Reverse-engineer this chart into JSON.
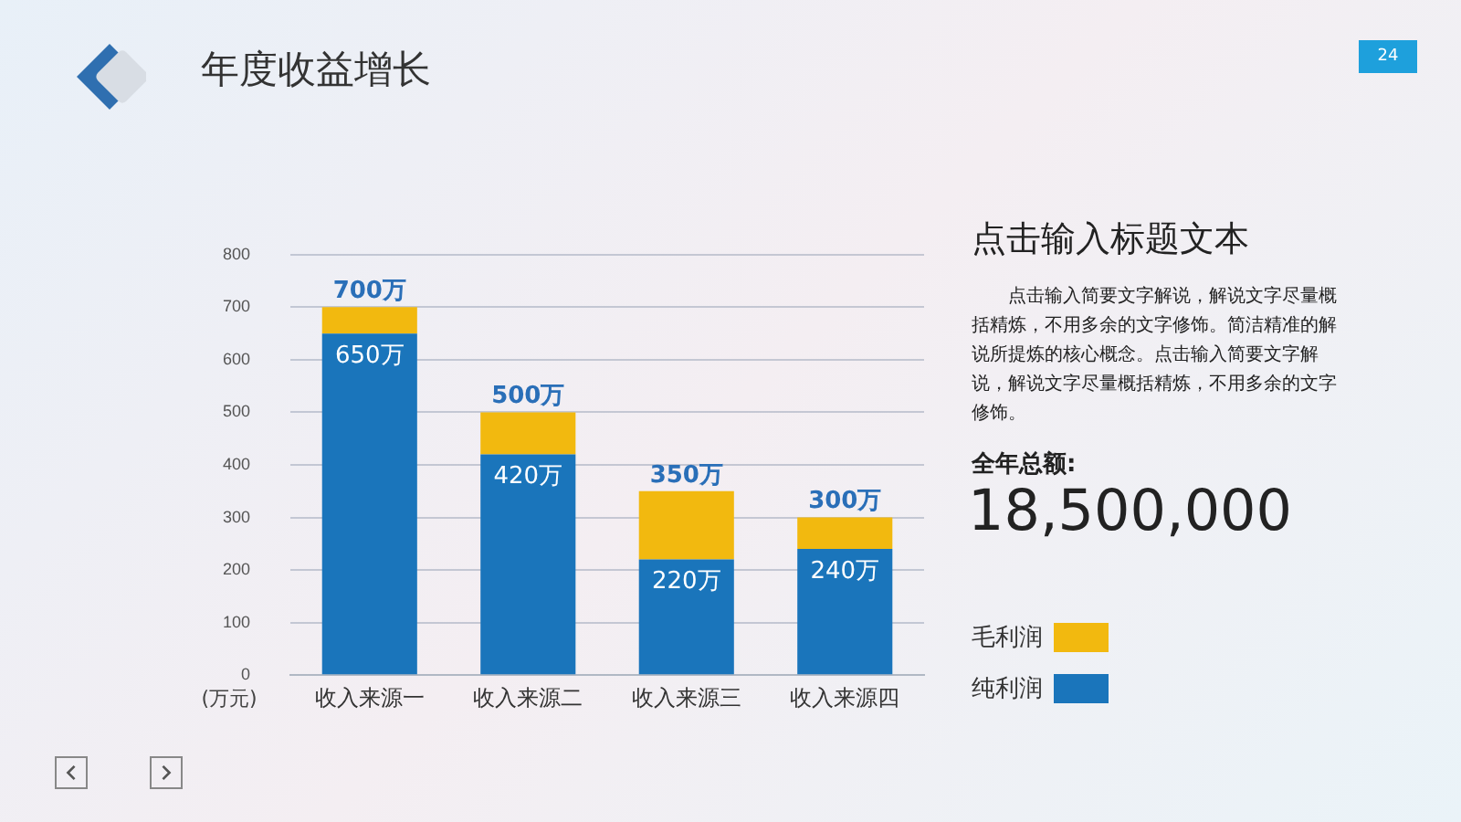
{
  "chart_data": {
    "type": "bar",
    "title": "年度收益增长",
    "ylabel": "(万元)",
    "stacked": true,
    "categories": [
      "收入来源一",
      "收入来源二",
      "收入来源三",
      "收入来源四"
    ],
    "series": [
      {
        "name": "纯利润",
        "color": "#1a75bb",
        "values": [
          650,
          420,
          220,
          240
        ],
        "value_labels": [
          "650万",
          "420万",
          "220万",
          "240万"
        ]
      },
      {
        "name": "毛利润",
        "color": "#f2b90f",
        "values": [
          50,
          80,
          130,
          60
        ]
      }
    ],
    "totals": [
      "700万",
      "500万",
      "350万",
      "300万"
    ],
    "ylim": [
      0,
      800
    ],
    "yticks": [
      0,
      100,
      200,
      300,
      400,
      500,
      600,
      700,
      800
    ],
    "grid": "y",
    "legend": "right",
    "annotations": [
      "24",
      "点击输入标题文本",
      "点击输入简要文字解说，解说文字尽量概括精炼，不用多余的文字修饰。简洁精准的解说所提炼的核心概念。点击输入简要文字解说，解说文字尽量概括精炼，不用多余的文字修饰。",
      "全年总额:",
      "18,500,000"
    ]
  }
}
